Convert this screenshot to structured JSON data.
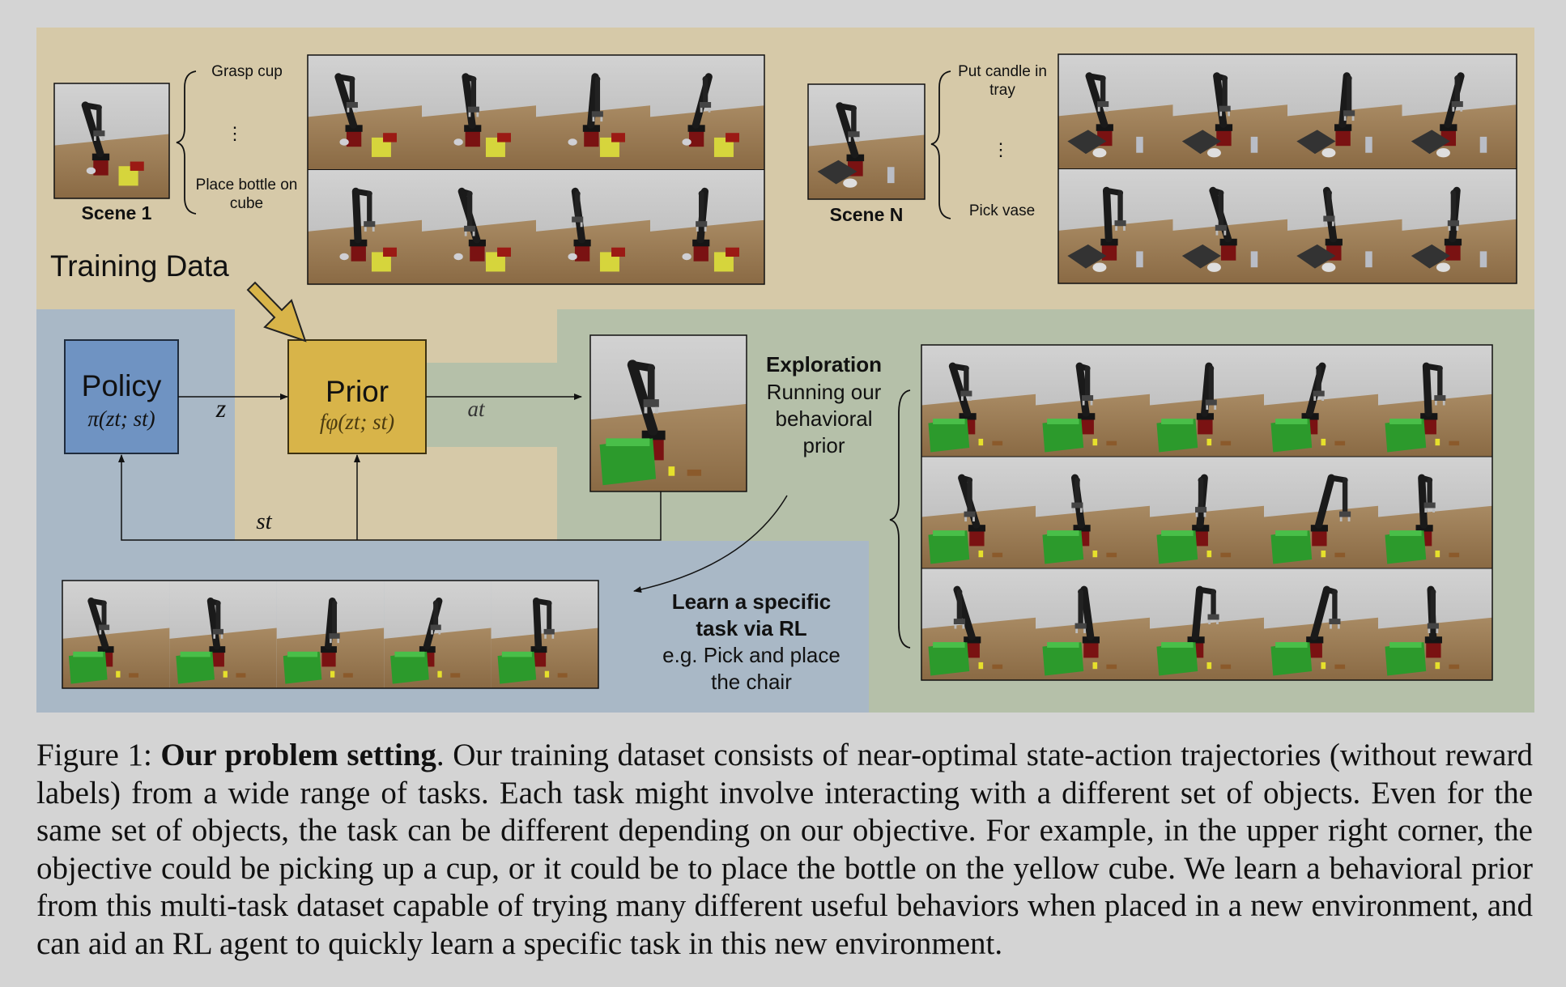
{
  "figure": {
    "scene1_label": "Scene 1",
    "sceneN_label": "Scene N",
    "scene1_tasks": [
      "Grasp cup",
      "⋮",
      "Place bottle on cube"
    ],
    "sceneN_tasks": [
      "Put candle in tray",
      "⋮",
      "Pick vase"
    ],
    "training_data_label": "Training Data",
    "policy": {
      "title": "Policy",
      "formula": "π(zt; st)"
    },
    "prior": {
      "title": "Prior",
      "formula": "fφ(zt; st)"
    },
    "z_label": "z",
    "a_label": "at",
    "s_label": "st",
    "exploration": {
      "title": "Exploration",
      "text": "Running our behavioral prior"
    },
    "learn": {
      "title": "Learn a specific task via RL",
      "text": "e.g. Pick and place the chair"
    },
    "colors": {
      "training": "#d6c9a8",
      "policy_panel": "#a9b8c6",
      "exploration_panel": "#b5c0a9",
      "policy_box": "#6f93c2",
      "prior_box": "#d8b449"
    }
  },
  "caption": {
    "label": "Figure 1:",
    "bold": "Our problem setting",
    "text": ". Our training dataset consists of near-optimal state-action trajectories (without reward labels) from a wide range of tasks. Each task might involve interacting with a different set of objects. Even for the same set of objects, the task can be different depending on our objective. For example, in the upper right corner, the objective could be picking up a cup, or it could be to place the bottle on the yellow cube. We learn a behavioral prior from this multi-task dataset capable of trying many different useful behaviors when placed in a new environment, and can aid an RL agent to quickly learn a specific task in this new environment."
  }
}
